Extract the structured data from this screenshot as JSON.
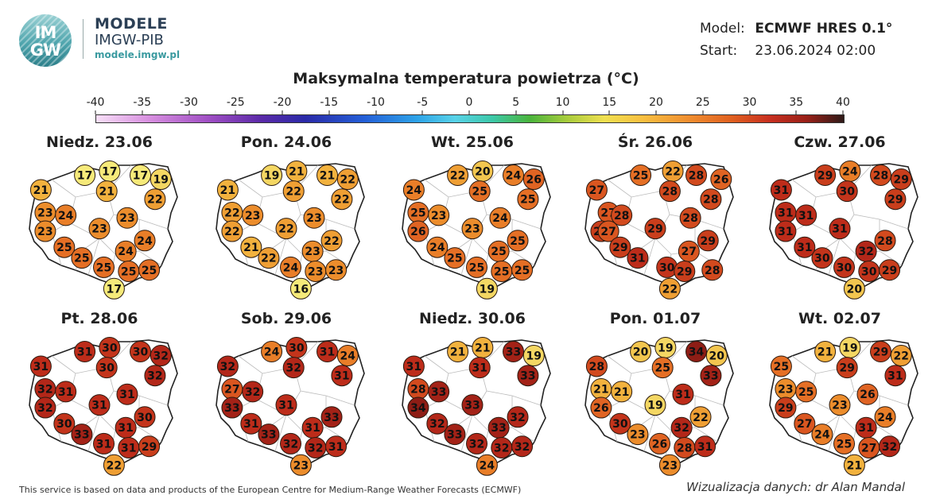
{
  "header": {
    "logo_text_top": "IM",
    "logo_text_bottom": "GW",
    "brand_line1": "MODELE",
    "brand_line2": "IMGW-PIB",
    "brand_url": "modele.imgw.pl",
    "model_label": "Model:",
    "model_value": "ECMWF HRES 0.1°",
    "start_label": "Start:",
    "start_value": "23.06.2024 02:00"
  },
  "title": "Maksymalna temperatura powietrza (°C)",
  "colorbar": {
    "ticks": [
      "-40",
      "-35",
      "-30",
      "-25",
      "-20",
      "-15",
      "-10",
      "-5",
      "0",
      "5",
      "10",
      "15",
      "20",
      "25",
      "30",
      "35",
      "40"
    ],
    "range": [
      -40,
      40
    ]
  },
  "days": [
    {
      "label": "Niedz. 23.06",
      "values": [
        17,
        17,
        17,
        19,
        21,
        21,
        22,
        23,
        24,
        23,
        23,
        23,
        24,
        25,
        24,
        25,
        25,
        25,
        25,
        17
      ]
    },
    {
      "label": "Pon. 24.06",
      "values": [
        19,
        21,
        21,
        22,
        21,
        22,
        22,
        22,
        23,
        23,
        22,
        22,
        22,
        21,
        23,
        22,
        24,
        23,
        23,
        16
      ]
    },
    {
      "label": "Wt. 25.06",
      "values": [
        22,
        20,
        24,
        26,
        24,
        25,
        25,
        25,
        23,
        24,
        26,
        23,
        25,
        24,
        25,
        25,
        25,
        25,
        25,
        19
      ]
    },
    {
      "label": "Śr. 26.06",
      "values": [
        25,
        22,
        28,
        26,
        27,
        28,
        28,
        27,
        28,
        28,
        29,
        27,
        29,
        29,
        29,
        27,
        31,
        30,
        29,
        28,
        22
      ]
    },
    {
      "label": "Czw. 27.06",
      "values": [
        29,
        24,
        28,
        29,
        31,
        30,
        29,
        31,
        31,
        31,
        31,
        28,
        31,
        32,
        30,
        30,
        30,
        29,
        20
      ]
    },
    {
      "label": "Pt. 28.06",
      "values": [
        31,
        30,
        30,
        32,
        31,
        30,
        32,
        32,
        31,
        31,
        32,
        31,
        30,
        30,
        31,
        33,
        31,
        31,
        29,
        22
      ]
    },
    {
      "label": "Sob. 29.06",
      "values": [
        24,
        30,
        31,
        24,
        32,
        32,
        31,
        27,
        32,
        33,
        31,
        33,
        31,
        31,
        33,
        32,
        32,
        31,
        23
      ]
    },
    {
      "label": "Niedz. 30.06",
      "values": [
        21,
        21,
        33,
        19,
        31,
        31,
        33,
        28,
        33,
        34,
        33,
        32,
        32,
        33,
        33,
        32,
        32,
        32,
        24
      ]
    },
    {
      "label": "Pon. 01.07",
      "values": [
        20,
        19,
        34,
        20,
        28,
        25,
        33,
        21,
        21,
        31,
        26,
        19,
        22,
        30,
        32,
        23,
        26,
        28,
        31,
        23
      ]
    },
    {
      "label": "Wt. 02.07",
      "values": [
        21,
        19,
        29,
        22,
        25,
        29,
        31,
        23,
        25,
        26,
        29,
        23,
        24,
        27,
        31,
        24,
        25,
        27,
        32,
        21
      ]
    }
  ],
  "footer": {
    "left": "This service is based on data and products of the European Centre for Medium-Range Weather Forecasts (ECMWF)",
    "right": "Wizualizacja danych: dr Alan Mandal"
  }
}
